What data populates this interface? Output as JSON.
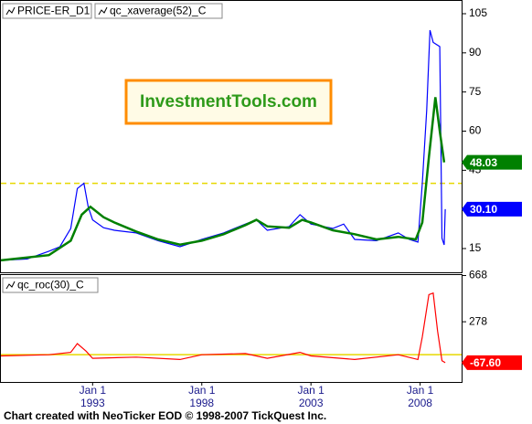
{
  "chart_data": [
    {
      "type": "line",
      "xlim": [
        1988.8,
        2009.9
      ],
      "ylim": [
        5.9,
        109.9
      ],
      "yticks": [
        15,
        30,
        45,
        60,
        75,
        90,
        105
      ],
      "reference_line": 40,
      "series": [
        {
          "name": "PRICE-ER_D1",
          "color": "#0000ff",
          "last_label": "30.10",
          "x": [
            1988.8,
            1990,
            1991,
            1991.5,
            1992,
            1992.3,
            1992.6,
            1992.8,
            1993,
            1993.5,
            1994,
            1995,
            1996,
            1997,
            1998,
            1999,
            2000,
            2000.5,
            2001,
            2002,
            2002.5,
            2003,
            2004,
            2004.5,
            2005,
            2006,
            2007,
            2007.5,
            2007.9,
            2008.1,
            2008.3,
            2008.45,
            2008.6,
            2008.9,
            2009.0,
            2009.1,
            2009.15
          ],
          "values": [
            10.5,
            11,
            14,
            15.7,
            22.7,
            38,
            40,
            31,
            26,
            23,
            22,
            21,
            18,
            15.7,
            18.5,
            21,
            24.4,
            26,
            22,
            23.4,
            28,
            24.4,
            22.7,
            24.4,
            18.5,
            18,
            21,
            18.5,
            17.5,
            40,
            68,
            98.7,
            94,
            92.4,
            19,
            16.4,
            30.1
          ]
        },
        {
          "name": "qc_xaverage(52)_C",
          "color": "#008000",
          "last_label": "48.03",
          "x": [
            1988.8,
            1991,
            1992,
            1992.5,
            1992.9,
            1993.5,
            1994,
            1995,
            1996,
            1997,
            1998,
            1999,
            2000,
            2000.5,
            2001,
            2002,
            2002.6,
            2003,
            2004,
            2005,
            2006,
            2007,
            2007.8,
            2008.1,
            2008.4,
            2008.7,
            2008.9,
            2009.1
          ],
          "values": [
            10.5,
            12.5,
            18,
            28,
            31,
            27,
            25,
            21.5,
            18.5,
            16.5,
            18,
            20.5,
            24,
            26,
            23.5,
            23,
            26,
            25,
            22,
            20.5,
            18.5,
            19.5,
            18.5,
            25,
            50,
            73,
            60,
            48.03
          ]
        }
      ]
    },
    {
      "type": "line",
      "xlim": [
        1988.8,
        2009.9
      ],
      "ylim": [
        -230,
        672
      ],
      "yticks": [
        278,
        668
      ],
      "reference_line": 0,
      "xticks": [
        {
          "value": 1993,
          "label": "1993"
        },
        {
          "value": 1998,
          "label": "1998"
        },
        {
          "value": 2003,
          "label": "2003"
        },
        {
          "value": 2008,
          "label": "2008"
        }
      ],
      "xtick_day_labels": [
        "Jan 1",
        "Jan 1",
        "Jan 1",
        "Jan 1"
      ],
      "series": [
        {
          "name": "qc_roc(30)_C",
          "color": "#ff0000",
          "last_label": "-67.60",
          "x": [
            1988.8,
            1991,
            1992,
            1992.3,
            1992.7,
            1993,
            1995,
            1997,
            1998,
            2000,
            2001,
            2002.5,
            2003,
            2005,
            2007,
            2007.9,
            2008.1,
            2008.4,
            2008.6,
            2008.8,
            2009,
            2009.15
          ],
          "values": [
            -10,
            0,
            20,
            94,
            30,
            -30,
            -20,
            -40,
            0,
            10,
            -30,
            20,
            -10,
            -40,
            0,
            -40,
            150,
            507,
            520,
            200,
            -50,
            -67.6
          ]
        }
      ]
    }
  ],
  "logo": "InvestmentTools.com",
  "footer": "Chart created with NeoTicker EOD © 1998-2007 TickQuest Inc."
}
